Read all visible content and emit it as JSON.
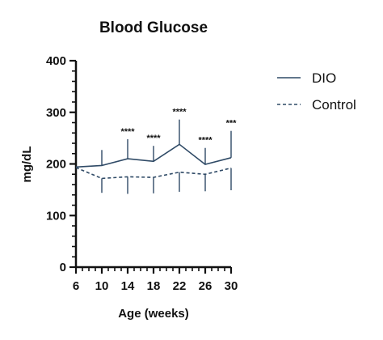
{
  "chart_data": {
    "type": "line",
    "title": "Blood Glucose",
    "xlabel": "Age (weeks)",
    "ylabel": "mg/dL",
    "x": [
      6,
      10,
      14,
      18,
      22,
      26,
      30
    ],
    "xlim": [
      6,
      30
    ],
    "ylim": [
      0,
      400
    ],
    "x_ticks": [
      6,
      10,
      14,
      18,
      22,
      26,
      30
    ],
    "y_ticks": [
      0,
      100,
      200,
      300,
      400
    ],
    "series": [
      {
        "name": "DIO",
        "style": "solid",
        "color": "#2f4a66",
        "values": [
          194,
          197,
          210,
          205,
          238,
          199,
          212
        ],
        "error_up": [
          0,
          30,
          38,
          30,
          48,
          32,
          52
        ],
        "error_dir": "up"
      },
      {
        "name": "Control",
        "style": "dashed",
        "color": "#2f4a66",
        "values": [
          193,
          172,
          175,
          174,
          184,
          180,
          192
        ],
        "error_down": [
          0,
          28,
          33,
          31,
          38,
          33,
          43
        ],
        "error_dir": "down"
      }
    ],
    "significance": [
      {
        "x": 14,
        "label": "****"
      },
      {
        "x": 18,
        "label": "****"
      },
      {
        "x": 22,
        "label": "****"
      },
      {
        "x": 26,
        "label": "****"
      },
      {
        "x": 30,
        "label": "***"
      }
    ],
    "legend": "right",
    "grid": false
  }
}
